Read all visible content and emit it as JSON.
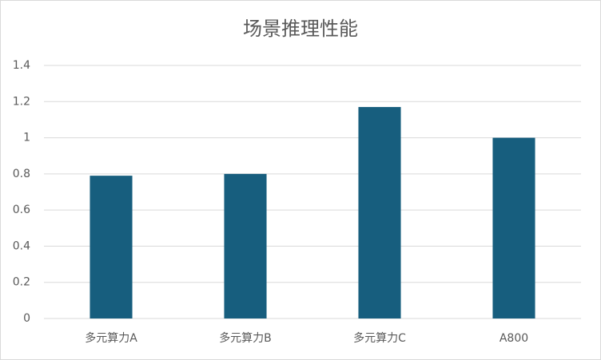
{
  "chart_data": {
    "type": "bar",
    "title": "场景推理性能",
    "categories": [
      "多元算力A",
      "多元算力B",
      "多元算力C",
      "A800"
    ],
    "values": [
      0.79,
      0.8,
      1.17,
      1.0
    ],
    "color": "#175e7e",
    "ylim": [
      0,
      1.4
    ],
    "yticks": [
      0,
      0.2,
      0.4,
      0.6,
      0.8,
      1,
      1.2,
      1.4
    ],
    "grid": true
  }
}
